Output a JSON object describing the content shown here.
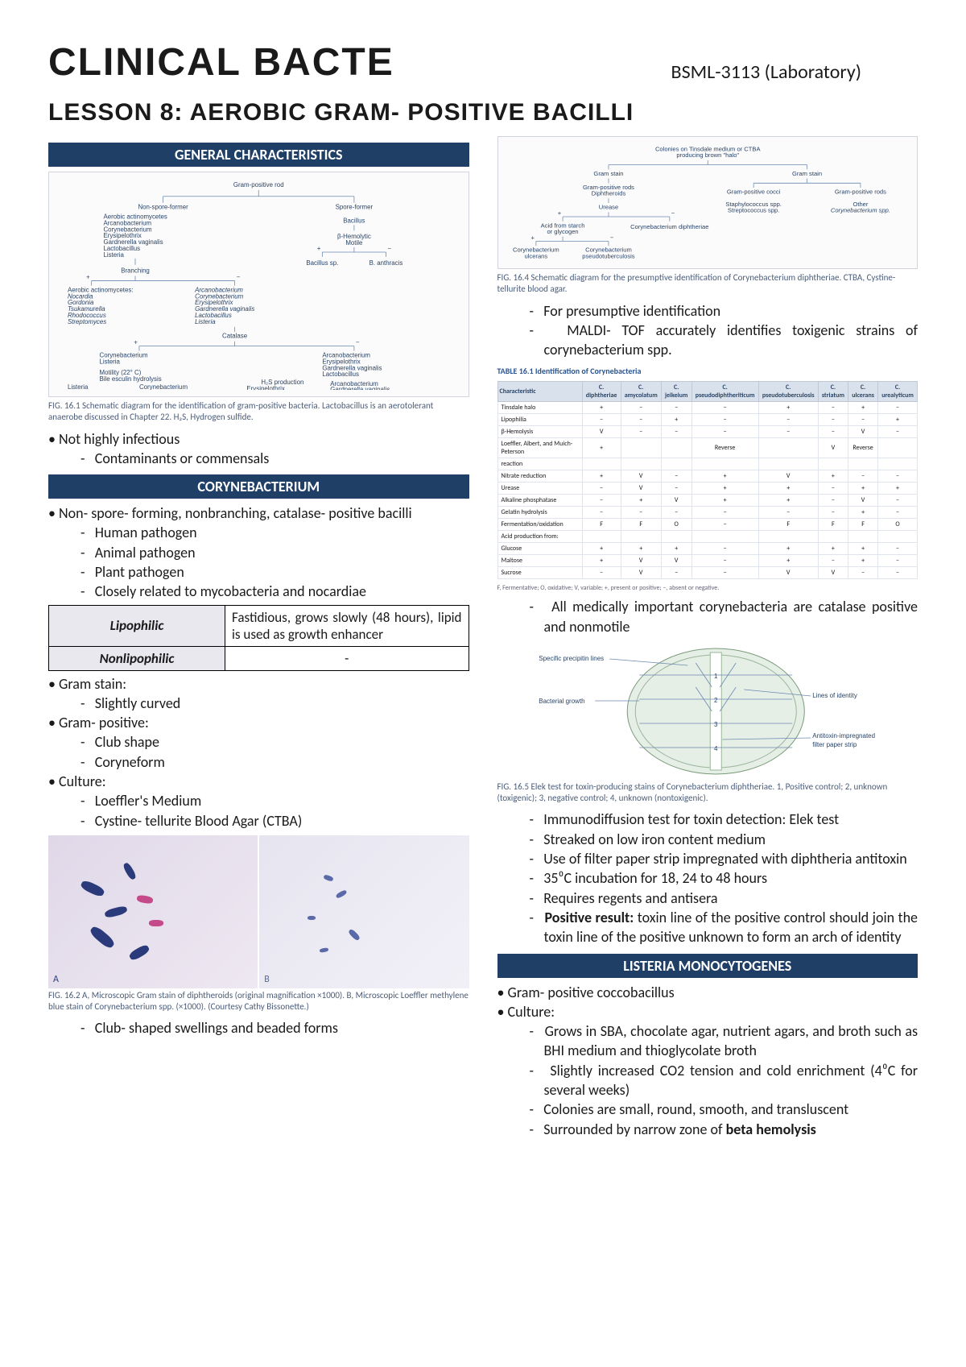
{
  "header": {
    "title": "CLINICAL BACTE",
    "course": "BSML-3113 (Laboratory)",
    "lesson": "LESSON 8: AEROBIC GRAM- POSITIVE BACILLI"
  },
  "left": {
    "section1": "GENERAL CHARACTERISTICS",
    "fig1_caption": "FIG. 16.1 Schematic diagram for the identification of gram-positive bacteria. Lactobacillus is an aerotolerant anaerobe discussed in Chapter 22. H₂S, Hydrogen sulfide.",
    "p1": "Not highly infectious",
    "p1_sub": [
      "Contaminants or commensals"
    ],
    "section2": "CORYNEBACTERIUM",
    "p2": "Non- spore- forming, nonbranching, catalase- positive bacilli",
    "p2_sub": [
      "Human pathogen",
      "Animal pathogen",
      "Plant pathogen",
      "Closely related to mycobacteria and nocardiae"
    ],
    "lipo_table": {
      "r1h": "Lipophilic",
      "r1d": "Fastidious, grows slowly (48 hours), lipid is used as growth enhancer",
      "r2h": "Nonlipophilic",
      "r2d": "-"
    },
    "gram_stain": "Gram stain:",
    "gram_stain_sub": [
      "Slightly curved"
    ],
    "gram_pos": "Gram- positive:",
    "gram_pos_sub": [
      "Club shape",
      "Coryneform"
    ],
    "culture": "Culture:",
    "culture_sub": [
      "Loeffler's Medium",
      "Cystine- tellurite Blood Agar (CTBA)"
    ],
    "fig2_caption": "FIG. 16.2 A, Microscopic Gram stain of diphtheroids (original magnification ×1000). B, Microscopic Loeffler methylene blue stain of Corynebacterium spp. (×1000). (Courtesy Cathy Bissonette.)",
    "club": "Club- shaped swellings and beaded forms",
    "tree1": {
      "root": "Gram-positive rod",
      "nsf": "Non-spore-former",
      "sf": "Spore-former",
      "nsf_list": "Aerobic actinomycetes\nArcanobacterium\nCorynebacterium\nErysipelothrix\nGardnerella vaginalis\nLactobacillus\nListeria",
      "bacillus": "Bacillus",
      "bhm": "β-Hemolytic\nMotile",
      "bsp": "Bacillus sp.",
      "banth": "B. anthracis",
      "branch": "Branching",
      "branch_plus": "Aerobic actinomycetes:\nNocardia\nGordonia\nTsukamurella\nRhodococcus\nStreptomyces",
      "branch_minus": "Arcanobacterium\nCorynebacterium\nErysipelothrix\nGardnerella vaginalis\nLactobacillus\nListeria",
      "catalase": "Catalase",
      "cat_plus": "Corynebacterium\nListeria",
      "cat_minus": "Arcanobacterium\nErysipelothrix\nGardnerella vaginalis\nLactobacillus",
      "mot": "Motility (22° C)\nBile esculin hydrolysis",
      "list": "Listeria",
      "cory": "Corynebacterium",
      "h2s": "H₂S production",
      "erys": "Erysipelothrix",
      "h2s_minus": "Arcanobacterium\nGardnerella vaginalis\nLactobacillus"
    }
  },
  "right": {
    "tree2": {
      "root": "Colonies on Tinsdale medium or CTBA\nproducing brown \"halo\"",
      "gs": "Gram stain",
      "gpr": "Gram-positive rods\nDiphtheroids",
      "gpc": "Gram-positive cocci",
      "gpr2": "Gram-positive rods",
      "urease": "Urease",
      "staph": "Staphylococcus spp.\nStreptococcus spp.",
      "other": "Other\nCorynebacterium spp.",
      "acid": "Acid from starch\nor glycogen",
      "cdiph": "Corynebacterium diphtheriae",
      "culc": "Corynebacterium\nulcerans",
      "cpseudo": "Corynebacterium\npseudotuberculosis"
    },
    "fig4_caption": "FIG. 16.4 Schematic diagram for the presumptive identification of Corynebacterium diphtheriae. CTBA, Cystine-tellurite blood agar.",
    "presump": [
      "For presumptive identification",
      "MALDI- TOF accurately identifies toxigenic strains of corynebacterium spp."
    ],
    "table_title": "TABLE 16.1 Identification of Corynebacteria",
    "table_cols": [
      "Characteristic",
      "C. diphtheriae",
      "C. amycolatum",
      "C. jeikeium",
      "C. pseudodiphtheriticum",
      "C. pseudotuberculosis",
      "C. striatum",
      "C. ulcerans",
      "C. urealyticum"
    ],
    "table_rows": [
      [
        "Tinsdale halo",
        "+",
        "−",
        "−",
        "−",
        "+",
        "−",
        "+",
        "−"
      ],
      [
        "Lipophilia",
        "−",
        "−",
        "+",
        "−",
        "−",
        "−",
        "−",
        "+"
      ],
      [
        "β-Hemolysis",
        "V",
        "−",
        "−",
        "−",
        "−",
        "−",
        "V",
        "−"
      ],
      [
        "Loeffler, Albert, and Muich-Peterson",
        "+",
        "",
        "",
        "Reverse",
        "",
        "V",
        "Reverse",
        ""
      ],
      [
        "reaction",
        "",
        "",
        "",
        "",
        "",
        "",
        "",
        ""
      ],
      [
        "Nitrate reduction",
        "+",
        "V",
        "−",
        "+",
        "V",
        "+",
        "−",
        "−"
      ],
      [
        "Urease",
        "−",
        "V",
        "−",
        "+",
        "+",
        "−",
        "+",
        "+"
      ],
      [
        "Alkaline phosphatase",
        "−",
        "+",
        "V",
        "+",
        "+",
        "−",
        "V",
        "−"
      ],
      [
        "Gelatin hydrolysis",
        "−",
        "−",
        "−",
        "−",
        "−",
        "−",
        "+",
        "−"
      ],
      [
        "Fermentation/oxidation",
        "F",
        "F",
        "O",
        "−",
        "F",
        "F",
        "F",
        "O"
      ],
      [
        "Acid production from:",
        "",
        "",
        "",
        "",
        "",
        "",
        "",
        ""
      ],
      [
        "  Glucose",
        "+",
        "+",
        "+",
        "−",
        "+",
        "+",
        "+",
        "−"
      ],
      [
        "  Maltose",
        "+",
        "V",
        "V",
        "−",
        "+",
        "−",
        "+",
        "−"
      ],
      [
        "  Sucrose",
        "−",
        "V",
        "−",
        "−",
        "V",
        "V",
        "−",
        "−"
      ]
    ],
    "table_foot": "F, Fermentative; O, oxidative; V, variable; +, present or positive; −, absent or negative.",
    "catalase_note": "All medically important corynebacteria are catalase positive and nonmotile",
    "elek_labels": {
      "spl": "Specific precipitin lines",
      "bg": "Bacterial growth",
      "loi": "Lines of identity",
      "afp": "Antitoxin-impregnated\nfilter paper strip"
    },
    "fig5_caption": "FIG. 16.5 Elek test for toxin-producing stains of Corynebacterium diphtheriae. 1, Positive control; 2, unknown (toxigenic); 3, negative control; 4, unknown (nontoxigenic).",
    "elek_list": [
      "Immunodiffusion test for toxin detection: Elek test",
      "Streaked on low iron content medium",
      "Use of filter paper strip impregnated with diphtheria antitoxin",
      "35⁰C incubation for 18, 24 to 48 hours",
      "Requires regents and antisera"
    ],
    "elek_pos_label": "Positive result:",
    "elek_pos_text": " toxin line of the positive control should join the toxin line of the positive unknown to form an arch of identity",
    "section3": "LISTERIA MONOCYTOGENES",
    "lm1": "Gram- positive coccobacillus",
    "lm2": "Culture:",
    "lm_sub": [
      "Grows in SBA, chocolate agar, nutrient agars, and broth such as BHI medium and thioglycolate broth",
      "Slightly increased CO2 tension and cold enrichment (4⁰C for several weeks)",
      "Colonies are small, round, smooth, and transluscent"
    ],
    "lm_last_prefix": "Surrounded by narrow zone of ",
    "lm_last_bold": "beta hemolysis"
  },
  "colors": {
    "bar": "#1f3f66",
    "text": "#1a1a1a"
  }
}
